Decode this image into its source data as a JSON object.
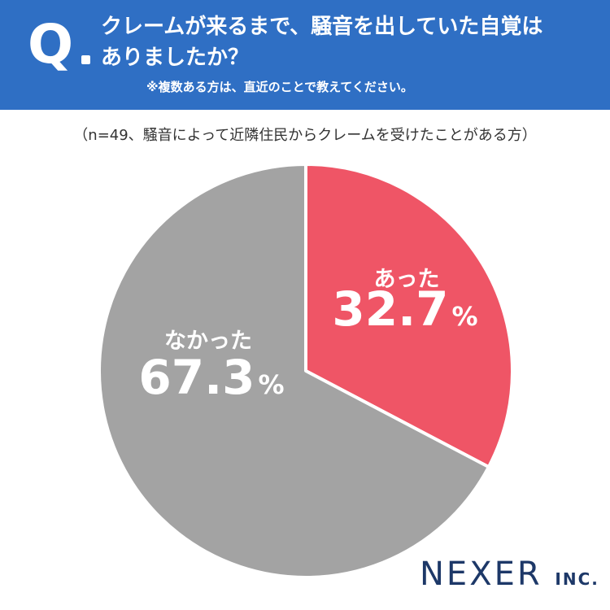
{
  "header": {
    "q_letter": "Q",
    "question_line1": "クレームが来るまで、騒音を出していた自覚は",
    "question_line2": "ありましたか？",
    "note": "※複数ある方は、直近のことで教えてください。"
  },
  "sample_note": "（n=49、騒音によって近隣住民からクレームを受けたことがある方）",
  "chart_data": {
    "type": "pie",
    "slices": [
      {
        "label": "あった",
        "value": 32.7,
        "display": "32.7",
        "color": "#ef5566"
      },
      {
        "label": "なかった",
        "value": 67.3,
        "display": "67.3",
        "color": "#a3a3a3"
      }
    ],
    "unit": "%"
  },
  "logo": {
    "name": "NEXER",
    "suffix": "INC."
  }
}
